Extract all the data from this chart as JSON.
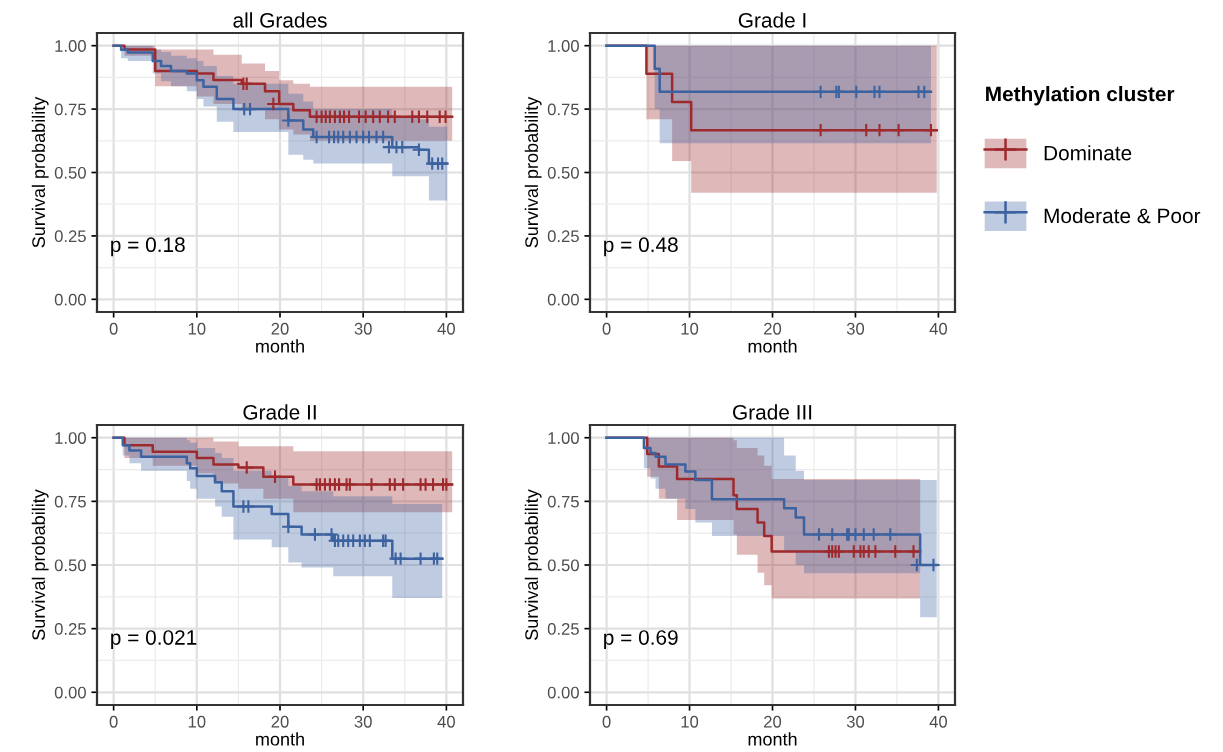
{
  "chart_data": [
    {
      "type": "step",
      "title": "all Grades",
      "xlabel": "month",
      "ylabel": "Survival probability",
      "xlim": [
        -2,
        42
      ],
      "ylim": [
        -0.05,
        1.05
      ],
      "xticks": [
        0,
        10,
        20,
        30,
        40
      ],
      "yticks": [
        {
          "value": 0,
          "label": "0.00"
        },
        {
          "value": 0.25,
          "label": "0.25"
        },
        {
          "value": 0.5,
          "label": "0.50"
        },
        {
          "value": 0.75,
          "label": "0.75"
        },
        {
          "value": 1,
          "label": "1.00"
        }
      ],
      "grid": true,
      "annotations": [
        "p = 0.18"
      ],
      "series": [
        {
          "color": "#9e2a2e",
          "x": [
            0,
            1.3,
            5.0,
            10.0,
            12.0,
            15.4,
            18.2,
            19.9,
            21.6,
            23.6,
            40.7
          ],
          "values": [
            1.0,
            0.985,
            0.9,
            0.89,
            0.865,
            0.85,
            0.82,
            0.77,
            0.745,
            0.72,
            0.72
          ],
          "lower": [
            1.0,
            0.96,
            0.84,
            0.8,
            0.77,
            0.75,
            0.71,
            0.67,
            0.65,
            0.625,
            0.625
          ],
          "upper": [
            1.0,
            1.0,
            0.985,
            0.985,
            0.964,
            0.93,
            0.9,
            0.864,
            0.85,
            0.838,
            0.838
          ]
        },
        {
          "color": "#3d62a0",
          "x": [
            0,
            0.9,
            1.7,
            4.7,
            5.7,
            6.9,
            8.8,
            10.0,
            10.8,
            12.4,
            14.4,
            21.0,
            22.8,
            24.0,
            33.5,
            36.7,
            37.9,
            40.1
          ],
          "values": [
            1.0,
            0.984,
            0.973,
            0.94,
            0.92,
            0.9,
            0.89,
            0.864,
            0.838,
            0.79,
            0.75,
            0.705,
            0.67,
            0.64,
            0.6,
            0.59,
            0.535,
            0.535
          ],
          "lower": [
            1.0,
            0.95,
            0.94,
            0.89,
            0.86,
            0.84,
            0.82,
            0.79,
            0.76,
            0.7,
            0.66,
            0.57,
            0.55,
            0.535,
            0.485,
            0.485,
            0.39,
            0.39
          ],
          "upper": [
            1.0,
            1.0,
            1.0,
            0.985,
            0.975,
            0.96,
            0.95,
            0.94,
            0.92,
            0.88,
            0.85,
            0.81,
            0.78,
            0.75,
            0.72,
            0.71,
            0.68,
            0.68
          ]
        },
        {
          "type": "scatter",
          "marker": "cross",
          "color": "#9e2a2e",
          "x": [
            15.6,
            16.0,
            19.2,
            24.4,
            25.0,
            25.5,
            26.0,
            26.6,
            27.2,
            27.7,
            28.3,
            29.5,
            30.3,
            31.2,
            32.0,
            33.0,
            33.8,
            35.9,
            36.7,
            37.7,
            39.2,
            39.9
          ],
          "values": [
            0.85,
            0.85,
            0.77,
            0.72,
            0.72,
            0.72,
            0.72,
            0.72,
            0.72,
            0.72,
            0.72,
            0.72,
            0.72,
            0.72,
            0.72,
            0.72,
            0.72,
            0.72,
            0.72,
            0.72,
            0.72,
            0.72
          ]
        },
        {
          "type": "scatter",
          "marker": "cross",
          "color": "#3d62a0",
          "x": [
            15.7,
            16.4,
            21.0,
            24.4,
            25.9,
            26.5,
            27.0,
            27.6,
            28.4,
            29.2,
            30.0,
            30.7,
            31.6,
            32.4,
            33.1,
            34.0,
            34.7,
            36.7,
            38.3,
            39.0,
            39.5
          ],
          "values": [
            0.75,
            0.75,
            0.705,
            0.64,
            0.64,
            0.64,
            0.64,
            0.64,
            0.64,
            0.64,
            0.64,
            0.64,
            0.64,
            0.64,
            0.6,
            0.6,
            0.6,
            0.59,
            0.535,
            0.535,
            0.535
          ]
        }
      ]
    },
    {
      "type": "step",
      "title": "Grade I",
      "xlabel": "month",
      "ylabel": "Survival probability",
      "xlim": [
        -2,
        42
      ],
      "ylim": [
        -0.05,
        1.05
      ],
      "xticks": [
        0,
        10,
        20,
        30,
        40
      ],
      "yticks": [
        {
          "value": 0,
          "label": "0.00"
        },
        {
          "value": 0.25,
          "label": "0.25"
        },
        {
          "value": 0.5,
          "label": "0.50"
        },
        {
          "value": 0.75,
          "label": "0.75"
        },
        {
          "value": 1,
          "label": "1.00"
        }
      ],
      "grid": true,
      "annotations": [
        "p = 0.48"
      ],
      "legend": "right",
      "legend_title": "Methylation cluster",
      "series": [
        {
          "name": "Dominate",
          "color": "#9e2a2e",
          "x": [
            0,
            4.8,
            7.9,
            10.2,
            39.8
          ],
          "values": [
            1.0,
            0.889,
            0.778,
            0.667,
            0.667
          ],
          "lower": [
            1.0,
            0.71,
            0.545,
            0.42,
            0.42
          ],
          "upper": [
            1.0,
            1.0,
            1.0,
            1.0,
            1.0
          ]
        },
        {
          "name": "Moderate & Poor",
          "color": "#3d62a0",
          "x": [
            0,
            5.8,
            6.4,
            39.1
          ],
          "values": [
            1.0,
            0.909,
            0.818,
            0.818
          ],
          "lower": [
            1.0,
            0.75,
            0.615,
            0.615
          ],
          "upper": [
            1.0,
            1.0,
            1.0,
            1.0
          ]
        },
        {
          "type": "scatter",
          "marker": "cross",
          "color": "#9e2a2e",
          "x": [
            25.8,
            31.3,
            32.9,
            35.2,
            39.1
          ],
          "values": [
            0.667,
            0.667,
            0.667,
            0.667,
            0.667
          ]
        },
        {
          "type": "scatter",
          "marker": "cross",
          "color": "#3d62a0",
          "x": [
            25.8,
            27.7,
            28.0,
            30.1,
            32.3,
            32.9,
            37.6,
            38.3
          ],
          "values": [
            0.818,
            0.818,
            0.818,
            0.818,
            0.818,
            0.818,
            0.818,
            0.818
          ]
        }
      ]
    },
    {
      "type": "step",
      "title": "Grade II",
      "xlabel": "month",
      "ylabel": "Survival probability",
      "xlim": [
        -2,
        42
      ],
      "ylim": [
        -0.05,
        1.05
      ],
      "xticks": [
        0,
        10,
        20,
        30,
        40
      ],
      "yticks": [
        {
          "value": 0,
          "label": "0.00"
        },
        {
          "value": 0.25,
          "label": "0.25"
        },
        {
          "value": 0.5,
          "label": "0.50"
        },
        {
          "value": 0.75,
          "label": "0.75"
        },
        {
          "value": 1,
          "label": "1.00"
        }
      ],
      "grid": true,
      "annotations": [
        "p = 0.021"
      ],
      "series": [
        {
          "color": "#9e2a2e",
          "x": [
            0,
            1.3,
            4.7,
            10.0,
            12.0,
            15.0,
            18.0,
            21.6,
            40.7
          ],
          "values": [
            1.0,
            0.97,
            0.945,
            0.92,
            0.895,
            0.883,
            0.847,
            0.816,
            0.816
          ],
          "lower": [
            1.0,
            0.92,
            0.89,
            0.86,
            0.82,
            0.8,
            0.76,
            0.707,
            0.707
          ],
          "upper": [
            1.0,
            1.0,
            1.0,
            1.0,
            0.985,
            0.967,
            0.967,
            0.947,
            0.947
          ]
        },
        {
          "color": "#3d62a0",
          "x": [
            0,
            1.1,
            1.9,
            3.3,
            8.8,
            9.2,
            10.0,
            12.2,
            13.0,
            14.4,
            19.0,
            21.0,
            22.6,
            26.4,
            33.5,
            39.5
          ],
          "values": [
            1.0,
            0.97,
            0.95,
            0.925,
            0.9,
            0.88,
            0.85,
            0.825,
            0.79,
            0.73,
            0.7,
            0.65,
            0.62,
            0.595,
            0.525,
            0.525
          ],
          "lower": [
            1.0,
            0.93,
            0.9,
            0.87,
            0.83,
            0.8,
            0.76,
            0.73,
            0.69,
            0.6,
            0.57,
            0.51,
            0.49,
            0.456,
            0.37,
            0.37
          ],
          "upper": [
            1.0,
            1.0,
            1.0,
            1.0,
            0.99,
            0.98,
            0.96,
            0.94,
            0.92,
            0.87,
            0.85,
            0.81,
            0.79,
            0.77,
            0.74,
            0.74
          ]
        },
        {
          "type": "scatter",
          "marker": "cross",
          "color": "#9e2a2e",
          "x": [
            16.0,
            19.4,
            24.4,
            24.8,
            25.4,
            26.0,
            26.6,
            27.1,
            28.0,
            28.4,
            31.0,
            33.2,
            33.8,
            34.8,
            36.9,
            37.5,
            38.4,
            39.6,
            40.0
          ],
          "values": [
            0.883,
            0.847,
            0.816,
            0.816,
            0.816,
            0.816,
            0.816,
            0.816,
            0.816,
            0.816,
            0.816,
            0.816,
            0.816,
            0.816,
            0.816,
            0.816,
            0.816,
            0.816,
            0.816
          ]
        },
        {
          "type": "scatter",
          "marker": "cross",
          "color": "#3d62a0",
          "x": [
            15.6,
            16.2,
            21.0,
            24.2,
            26.2,
            26.6,
            27.0,
            27.6,
            28.2,
            28.8,
            29.6,
            30.2,
            30.8,
            32.4,
            32.7,
            33.9,
            34.5,
            36.9,
            38.5,
            38.9
          ],
          "values": [
            0.73,
            0.73,
            0.65,
            0.62,
            0.62,
            0.595,
            0.595,
            0.595,
            0.595,
            0.595,
            0.595,
            0.595,
            0.595,
            0.595,
            0.595,
            0.525,
            0.525,
            0.525,
            0.525,
            0.525
          ]
        }
      ]
    },
    {
      "type": "step",
      "title": "Grade III",
      "xlabel": "month",
      "ylabel": "Survival probability",
      "xlim": [
        -2,
        42
      ],
      "ylim": [
        -0.05,
        1.05
      ],
      "xticks": [
        0,
        10,
        20,
        30,
        40
      ],
      "yticks": [
        {
          "value": 0,
          "label": "0.00"
        },
        {
          "value": 0.25,
          "label": "0.25"
        },
        {
          "value": 0.5,
          "label": "0.50"
        },
        {
          "value": 0.75,
          "label": "0.75"
        },
        {
          "value": 1,
          "label": "1.00"
        }
      ],
      "grid": true,
      "annotations": [
        "p = 0.69"
      ],
      "series": [
        {
          "color": "#9e2a2e",
          "x": [
            0,
            4.9,
            6.3,
            8.5,
            15.3,
            15.7,
            18.2,
            19.0,
            19.9,
            37.8
          ],
          "values": [
            1.0,
            0.936,
            0.887,
            0.838,
            0.774,
            0.72,
            0.667,
            0.614,
            0.553,
            0.553
          ],
          "lower": [
            1.0,
            0.847,
            0.76,
            0.677,
            0.62,
            0.54,
            0.47,
            0.42,
            0.368,
            0.368
          ],
          "upper": [
            1.0,
            1.0,
            1.0,
            1.0,
            0.99,
            0.96,
            0.93,
            0.89,
            0.838,
            0.838
          ]
        },
        {
          "color": "#3d62a0",
          "x": [
            0,
            4.5,
            5.3,
            5.9,
            7.1,
            9.5,
            10.7,
            12.7,
            21.4,
            22.8,
            23.8,
            37.8,
            39.8
          ],
          "values": [
            1.0,
            0.96,
            0.94,
            0.925,
            0.895,
            0.867,
            0.834,
            0.758,
            0.723,
            0.687,
            0.62,
            0.5,
            0.5
          ],
          "lower": [
            1.0,
            0.88,
            0.84,
            0.8,
            0.76,
            0.72,
            0.667,
            0.614,
            0.55,
            0.5,
            0.468,
            0.295,
            0.295
          ],
          "upper": [
            1.0,
            1.0,
            1.0,
            1.0,
            1.0,
            1.0,
            1.0,
            1.0,
            0.93,
            0.87,
            0.834,
            0.834,
            0.834
          ]
        },
        {
          "type": "scatter",
          "marker": "cross",
          "color": "#9e2a2e",
          "x": [
            26.8,
            27.2,
            27.6,
            28.0,
            29.8,
            30.6,
            31.0,
            31.6,
            32.4,
            34.8,
            37.0
          ],
          "values": [
            0.553,
            0.553,
            0.553,
            0.553,
            0.553,
            0.553,
            0.553,
            0.553,
            0.553,
            0.553,
            0.553
          ]
        },
        {
          "type": "scatter",
          "marker": "cross",
          "color": "#3d62a0",
          "x": [
            25.6,
            27.2,
            29.0,
            29.2,
            30.0,
            31.0,
            32.2,
            34.2,
            37.4,
            39.4
          ],
          "values": [
            0.62,
            0.62,
            0.62,
            0.62,
            0.62,
            0.62,
            0.62,
            0.62,
            0.5,
            0.5
          ]
        }
      ]
    }
  ]
}
